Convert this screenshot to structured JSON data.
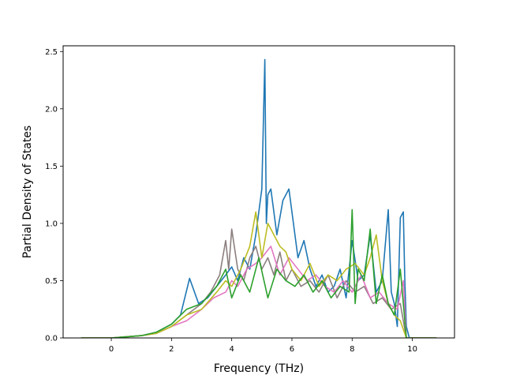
{
  "chart_data": {
    "type": "line",
    "title": "",
    "xlabel": "Frequency (THz)",
    "ylabel": "Partial Density of States",
    "xlim": [
      -1.6,
      11.4
    ],
    "ylim": [
      0.0,
      2.55
    ],
    "x_ticks": [
      0,
      2,
      4,
      6,
      8,
      10
    ],
    "x_tick_labels": [
      "0",
      "2",
      "4",
      "6",
      "8",
      "10"
    ],
    "y_ticks": [
      0.0,
      0.5,
      1.0,
      1.5,
      2.0,
      2.5
    ],
    "y_tick_labels": [
      "0.0",
      "0.5",
      "1.0",
      "1.5",
      "2.0",
      "2.5"
    ],
    "grid": false,
    "legend": "none",
    "series": [
      {
        "color": "#1f77b4",
        "x": [
          -1.0,
          0.0,
          1.0,
          1.5,
          2.0,
          2.3,
          2.6,
          2.9,
          3.2,
          3.5,
          3.8,
          4.0,
          4.2,
          4.4,
          4.6,
          4.8,
          5.0,
          5.1,
          5.15,
          5.2,
          5.3,
          5.5,
          5.7,
          5.9,
          6.0,
          6.2,
          6.4,
          6.6,
          6.8,
          7.0,
          7.2,
          7.4,
          7.6,
          7.8,
          8.0,
          8.2,
          8.4,
          8.6,
          8.8,
          9.0,
          9.2,
          9.3,
          9.4,
          9.5,
          9.6,
          9.7,
          9.75,
          9.8,
          9.9,
          10.0,
          10.8
        ],
        "y": [
          0.0,
          0.0,
          0.02,
          0.05,
          0.12,
          0.2,
          0.52,
          0.3,
          0.35,
          0.45,
          0.55,
          0.62,
          0.5,
          0.7,
          0.6,
          0.9,
          1.3,
          2.43,
          1.0,
          1.25,
          1.3,
          0.9,
          1.2,
          1.3,
          1.1,
          0.7,
          0.85,
          0.6,
          0.45,
          0.55,
          0.4,
          0.45,
          0.6,
          0.35,
          0.85,
          0.5,
          0.55,
          0.9,
          0.4,
          0.5,
          1.12,
          0.4,
          0.3,
          0.1,
          1.05,
          1.1,
          0.5,
          0.1,
          0.0,
          0.0,
          0.0
        ]
      },
      {
        "color": "#8c7f7f",
        "x": [
          -1.0,
          0.0,
          1.0,
          1.5,
          2.0,
          2.5,
          3.0,
          3.3,
          3.6,
          3.8,
          3.9,
          4.0,
          4.2,
          4.4,
          4.6,
          4.8,
          5.0,
          5.2,
          5.4,
          5.6,
          5.8,
          6.0,
          6.3,
          6.6,
          6.9,
          7.2,
          7.5,
          7.8,
          8.1,
          8.4,
          8.7,
          9.0,
          9.3,
          9.6,
          9.8,
          10.0,
          10.8
        ],
        "y": [
          0.0,
          0.0,
          0.02,
          0.04,
          0.1,
          0.2,
          0.3,
          0.4,
          0.55,
          0.85,
          0.6,
          0.95,
          0.6,
          0.5,
          0.7,
          0.8,
          0.6,
          0.7,
          0.55,
          0.75,
          0.5,
          0.6,
          0.45,
          0.5,
          0.4,
          0.55,
          0.35,
          0.5,
          0.4,
          0.45,
          0.3,
          0.35,
          0.25,
          0.3,
          0.0,
          0.0,
          0.0
        ]
      },
      {
        "color": "#e377c2",
        "x": [
          -1.0,
          0.0,
          1.0,
          1.5,
          2.0,
          2.5,
          3.0,
          3.4,
          3.8,
          4.0,
          4.2,
          4.5,
          4.8,
          5.0,
          5.3,
          5.6,
          5.9,
          6.2,
          6.5,
          6.8,
          7.1,
          7.4,
          7.7,
          8.0,
          8.3,
          8.6,
          8.9,
          9.2,
          9.5,
          9.7,
          9.8,
          10.0,
          10.8
        ],
        "y": [
          0.0,
          0.0,
          0.02,
          0.04,
          0.1,
          0.15,
          0.25,
          0.35,
          0.4,
          0.5,
          0.45,
          0.6,
          0.65,
          0.7,
          0.8,
          0.55,
          0.7,
          0.6,
          0.5,
          0.55,
          0.45,
          0.4,
          0.5,
          0.4,
          0.55,
          0.35,
          0.4,
          0.3,
          0.25,
          0.5,
          0.0,
          0.0,
          0.0
        ]
      },
      {
        "color": "#bcbd22",
        "x": [
          -1.0,
          0.0,
          1.0,
          1.5,
          2.0,
          2.5,
          3.0,
          3.5,
          3.8,
          4.0,
          4.3,
          4.6,
          4.8,
          5.0,
          5.2,
          5.4,
          5.6,
          5.8,
          6.0,
          6.3,
          6.6,
          6.9,
          7.2,
          7.5,
          7.8,
          8.1,
          8.4,
          8.6,
          8.8,
          9.0,
          9.2,
          9.4,
          9.6,
          9.8,
          10.0,
          10.8
        ],
        "y": [
          0.0,
          0.0,
          0.02,
          0.04,
          0.1,
          0.2,
          0.25,
          0.4,
          0.5,
          0.45,
          0.6,
          0.8,
          1.1,
          0.7,
          1.0,
          0.9,
          0.8,
          0.75,
          0.6,
          0.5,
          0.65,
          0.45,
          0.55,
          0.5,
          0.6,
          0.65,
          0.55,
          0.7,
          0.9,
          0.5,
          0.3,
          0.2,
          0.15,
          0.0,
          0.0,
          0.0
        ]
      },
      {
        "color": "#2ca02c",
        "x": [
          -1.0,
          0.0,
          1.0,
          1.5,
          2.0,
          2.5,
          3.0,
          3.5,
          3.8,
          4.0,
          4.3,
          4.6,
          4.9,
          5.2,
          5.5,
          5.8,
          6.1,
          6.4,
          6.7,
          7.0,
          7.3,
          7.6,
          7.9,
          8.0,
          8.1,
          8.2,
          8.4,
          8.6,
          8.8,
          9.0,
          9.2,
          9.4,
          9.6,
          9.7,
          9.8,
          10.0,
          10.8
        ],
        "y": [
          0.0,
          0.0,
          0.02,
          0.05,
          0.12,
          0.25,
          0.3,
          0.45,
          0.6,
          0.35,
          0.55,
          0.4,
          0.7,
          0.35,
          0.6,
          0.5,
          0.45,
          0.55,
          0.4,
          0.5,
          0.35,
          0.45,
          0.4,
          1.12,
          0.3,
          0.6,
          0.5,
          0.95,
          0.3,
          0.55,
          0.3,
          0.2,
          0.6,
          0.3,
          0.0,
          0.0,
          0.0
        ]
      }
    ]
  }
}
